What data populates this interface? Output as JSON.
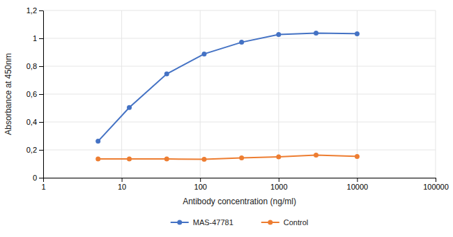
{
  "chart_data": {
    "type": "line",
    "xlabel": "Antibody concentration (ng/ml)",
    "ylabel": "Absorbance at 450nm",
    "x": [
      5,
      12.5,
      37.5,
      112.5,
      337.5,
      1000,
      3000,
      10000
    ],
    "series": [
      {
        "name": "MAS-47781",
        "color": "#4472C4",
        "marker": "circle",
        "values": [
          0.262,
          0.504,
          0.745,
          0.888,
          0.972,
          1.028,
          1.038,
          1.033
        ]
      },
      {
        "name": "Control",
        "color": "#ED7D31",
        "marker": "circle",
        "values": [
          0.135,
          0.135,
          0.135,
          0.132,
          0.143,
          0.15,
          0.163,
          0.153
        ]
      }
    ],
    "xlim": [
      1,
      100000
    ],
    "ylim": [
      0,
      1.2
    ],
    "xticks": [
      1,
      10,
      100,
      1000,
      10000,
      100000
    ],
    "yticks": [
      0,
      {
        "value": 0.2,
        "label": "0,2"
      },
      {
        "value": 0.4,
        "label": "0,4"
      },
      {
        "value": 0.6,
        "label": "0,6"
      },
      {
        "value": 0.8,
        "label": "0,8"
      },
      1,
      {
        "value": 1.2,
        "label": "1,2"
      }
    ],
    "log": "x",
    "grid": true,
    "legend": "bottom"
  }
}
